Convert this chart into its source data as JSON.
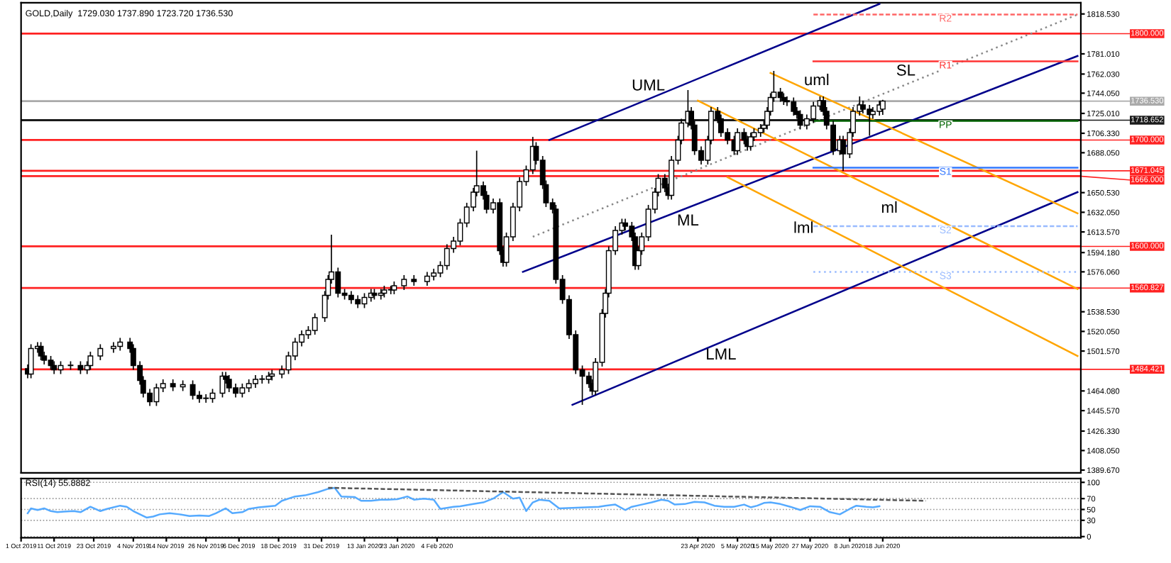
{
  "chart_data": [
    {
      "type": "candlestick",
      "title": "GOLD,Daily  1729.030 1737.890 1723.720 1736.530",
      "color": "#000000",
      "tick_labels": "y",
      "xlim": [
        "2019-10-01",
        "2020-08-17"
      ],
      "ylim": [
        1387,
        1829
      ],
      "yticks": [
        {
          "value": 1818.53,
          "label": "1818.530"
        },
        {
          "value": 1781.01,
          "label": "1781.010"
        },
        {
          "value": 1762.03,
          "label": "1762.030"
        },
        {
          "value": 1744.05,
          "label": "1744.050"
        },
        {
          "value": 1725.01,
          "label": "1725.010"
        },
        {
          "value": 1706.33,
          "label": "1706.330"
        },
        {
          "value": 1688.05,
          "label": "1688.050"
        },
        {
          "value": 1650.53,
          "label": "1650.530"
        },
        {
          "value": 1632.05,
          "label": "1632.050"
        },
        {
          "value": 1613.57,
          "label": "1613.570"
        },
        {
          "value": 1594.18,
          "label": "1594.180"
        },
        {
          "value": 1576.06,
          "label": "1576.060"
        },
        {
          "value": 1538.53,
          "label": "1538.530"
        },
        {
          "value": 1520.05,
          "label": "1520.050"
        },
        {
          "value": 1501.57,
          "label": "1501.570"
        },
        {
          "value": 1464.08,
          "label": "1464.080"
        },
        {
          "value": 1445.57,
          "label": "1445.570"
        },
        {
          "value": 1426.33,
          "label": "1426.330"
        },
        {
          "value": 1408.05,
          "label": "1408.050"
        },
        {
          "value": 1389.67,
          "label": "1389.670"
        }
      ],
      "x": [
        "2019-10-03",
        "2019-10-04",
        "2019-10-06",
        "2019-10-07",
        "2019-10-08",
        "2019-10-10",
        "2019-10-11",
        "2019-10-13",
        "2019-10-16",
        "2019-10-19",
        "2019-10-21",
        "2019-10-22",
        "2019-10-25",
        "2019-10-29",
        "2019-10-31",
        "2019-11-03",
        "2019-11-04",
        "2019-11-06",
        "2019-11-07",
        "2019-11-09",
        "2019-11-11",
        "2019-11-13",
        "2019-11-16",
        "2019-11-19",
        "2019-11-22",
        "2019-11-24",
        "2019-11-26",
        "2019-11-28",
        "2019-12-01",
        "2019-12-02",
        "2019-12-03",
        "2019-12-05",
        "2019-12-07",
        "2019-12-09",
        "2019-12-11",
        "2019-12-13",
        "2019-12-15",
        "2019-12-16",
        "2019-12-19",
        "2019-12-21",
        "2019-12-23",
        "2019-12-25",
        "2019-12-27",
        "2019-12-29",
        "2020-01-01",
        "2020-01-02",
        "2020-01-03",
        "2020-01-05",
        "2020-01-07",
        "2020-01-09",
        "2020-01-11",
        "2020-01-13",
        "2020-01-15",
        "2020-01-16",
        "2020-01-18",
        "2020-01-19",
        "2020-01-21",
        "2020-01-22",
        "2020-01-25",
        "2020-01-28",
        "2020-02-01",
        "2020-02-03",
        "2020-02-05",
        "2020-02-07",
        "2020-02-09",
        "2020-02-11",
        "2020-02-13",
        "2020-02-15",
        "2020-02-16",
        "2020-02-18",
        "2020-02-19",
        "2020-02-21",
        "2020-02-23",
        "2020-02-24",
        "2020-02-25",
        "2020-02-27",
        "2020-02-29",
        "2020-03-02",
        "2020-03-04",
        "2020-03-05",
        "2020-03-07",
        "2020-03-08",
        "2020-03-10",
        "2020-03-11",
        "2020-03-13",
        "2020-03-15",
        "2020-03-17",
        "2020-03-19",
        "2020-03-21",
        "2020-03-22",
        "2020-03-23",
        "2020-03-25",
        "2020-03-26",
        "2020-03-27",
        "2020-03-29",
        "2020-03-31",
        "2020-04-01",
        "2020-04-03",
        "2020-04-04",
        "2020-04-05",
        "2020-04-06",
        "2020-04-08",
        "2020-04-10",
        "2020-04-11",
        "2020-04-13",
        "2020-04-14",
        "2020-04-15",
        "2020-04-17",
        "2020-04-18",
        "2020-04-20",
        "2020-04-21",
        "2020-04-22",
        "2020-04-24",
        "2020-04-26",
        "2020-04-27",
        "2020-04-29",
        "2020-04-30",
        "2020-05-02",
        "2020-05-04",
        "2020-05-05",
        "2020-05-07",
        "2020-05-08",
        "2020-05-09",
        "2020-05-10",
        "2020-05-12",
        "2020-05-13",
        "2020-05-14",
        "2020-05-15",
        "2020-05-16",
        "2020-05-18",
        "2020-05-19",
        "2020-05-20",
        "2020-05-22",
        "2020-05-23",
        "2020-05-24",
        "2020-05-26",
        "2020-05-28",
        "2020-05-30",
        "2020-05-31",
        "2020-06-01",
        "2020-06-03",
        "2020-06-05",
        "2020-06-06",
        "2020-06-08",
        "2020-06-09",
        "2020-06-11",
        "2020-06-12",
        "2020-06-14",
        "2020-06-15",
        "2020-06-17",
        "2020-06-18"
      ],
      "ohlc": [
        [
          1485,
          1489,
          1476,
          1480
        ],
        [
          1480,
          1508,
          1476,
          1504
        ],
        [
          1504,
          1510,
          1500,
          1506
        ],
        [
          1506,
          1510,
          1493,
          1497
        ],
        [
          1497,
          1501,
          1489,
          1493
        ],
        [
          1493,
          1497,
          1484,
          1488
        ],
        [
          1488,
          1492,
          1480,
          1484
        ],
        [
          1484,
          1492,
          1480,
          1488
        ],
        [
          1488,
          1492,
          1484,
          1488
        ],
        [
          1488,
          1492,
          1480,
          1484
        ],
        [
          1484,
          1492,
          1480,
          1488
        ],
        [
          1488,
          1501,
          1484,
          1497
        ],
        [
          1497,
          1508,
          1493,
          1504
        ],
        [
          1504,
          1510,
          1500,
          1506
        ],
        [
          1506,
          1514,
          1502,
          1510
        ],
        [
          1510,
          1514,
          1500,
          1504
        ],
        [
          1504,
          1508,
          1484,
          1488
        ],
        [
          1488,
          1492,
          1470,
          1474
        ],
        [
          1474,
          1478,
          1458,
          1462
        ],
        [
          1462,
          1466,
          1450,
          1454
        ],
        [
          1454,
          1471,
          1450,
          1467
        ],
        [
          1467,
          1475,
          1463,
          1471
        ],
        [
          1471,
          1475,
          1464,
          1468
        ],
        [
          1468,
          1474,
          1464,
          1470
        ],
        [
          1470,
          1474,
          1456,
          1460
        ],
        [
          1460,
          1464,
          1453,
          1457
        ],
        [
          1457,
          1461,
          1453,
          1457
        ],
        [
          1457,
          1466,
          1453,
          1462
        ],
        [
          1462,
          1482,
          1458,
          1478
        ],
        [
          1478,
          1482,
          1471,
          1475
        ],
        [
          1475,
          1479,
          1463,
          1467
        ],
        [
          1467,
          1471,
          1458,
          1462
        ],
        [
          1462,
          1471,
          1458,
          1467
        ],
        [
          1467,
          1475,
          1463,
          1471
        ],
        [
          1471,
          1479,
          1467,
          1475
        ],
        [
          1475,
          1479,
          1471,
          1475
        ],
        [
          1475,
          1482,
          1471,
          1478
        ],
        [
          1478,
          1484,
          1474,
          1480
        ],
        [
          1480,
          1488,
          1476,
          1484
        ],
        [
          1484,
          1501,
          1480,
          1497
        ],
        [
          1497,
          1514,
          1493,
          1510
        ],
        [
          1510,
          1521,
          1506,
          1517
        ],
        [
          1517,
          1525,
          1513,
          1521
        ],
        [
          1521,
          1537,
          1517,
          1533
        ],
        [
          1533,
          1558,
          1529,
          1554
        ],
        [
          1554,
          1573,
          1550,
          1569
        ],
        [
          1569,
          1611,
          1565,
          1576
        ],
        [
          1576,
          1580,
          1552,
          1556
        ],
        [
          1556,
          1560,
          1550,
          1554
        ],
        [
          1554,
          1558,
          1546,
          1550
        ],
        [
          1550,
          1554,
          1542,
          1546
        ],
        [
          1546,
          1556,
          1542,
          1552
        ],
        [
          1552,
          1560,
          1548,
          1556
        ],
        [
          1556,
          1560,
          1550,
          1554
        ],
        [
          1554,
          1560,
          1550,
          1556
        ],
        [
          1556,
          1563,
          1552,
          1559
        ],
        [
          1559,
          1563,
          1555,
          1559
        ],
        [
          1559,
          1567,
          1555,
          1563
        ],
        [
          1563,
          1573,
          1559,
          1569
        ],
        [
          1569,
          1573,
          1563,
          1567
        ],
        [
          1567,
          1576,
          1563,
          1572
        ],
        [
          1572,
          1579,
          1568,
          1575
        ],
        [
          1575,
          1586,
          1571,
          1582
        ],
        [
          1582,
          1602,
          1578,
          1598
        ],
        [
          1598,
          1609,
          1594,
          1605
        ],
        [
          1605,
          1626,
          1601,
          1622
        ],
        [
          1622,
          1641,
          1618,
          1637
        ],
        [
          1637,
          1655,
          1633,
          1651
        ],
        [
          1651,
          1690,
          1647,
          1657
        ],
        [
          1657,
          1661,
          1644,
          1648
        ],
        [
          1648,
          1652,
          1631,
          1635
        ],
        [
          1635,
          1645,
          1631,
          1641
        ],
        [
          1641,
          1645,
          1592,
          1596
        ],
        [
          1596,
          1600,
          1581,
          1585
        ],
        [
          1585,
          1613,
          1581,
          1609
        ],
        [
          1609,
          1641,
          1605,
          1637
        ],
        [
          1637,
          1665,
          1633,
          1661
        ],
        [
          1661,
          1676,
          1657,
          1672
        ],
        [
          1672,
          1703,
          1668,
          1694
        ],
        [
          1694,
          1698,
          1677,
          1681
        ],
        [
          1681,
          1685,
          1654,
          1658
        ],
        [
          1658,
          1662,
          1637,
          1641
        ],
        [
          1641,
          1645,
          1631,
          1635
        ],
        [
          1635,
          1639,
          1565,
          1569
        ],
        [
          1569,
          1573,
          1546,
          1550
        ],
        [
          1550,
          1554,
          1513,
          1517
        ],
        [
          1517,
          1521,
          1480,
          1484
        ],
        [
          1484,
          1488,
          1451,
          1478
        ],
        [
          1478,
          1482,
          1467,
          1471
        ],
        [
          1471,
          1475,
          1460,
          1464
        ],
        [
          1464,
          1495,
          1460,
          1491
        ],
        [
          1491,
          1541,
          1487,
          1537
        ],
        [
          1537,
          1560,
          1533,
          1556
        ],
        [
          1556,
          1600,
          1552,
          1596
        ],
        [
          1596,
          1619,
          1592,
          1615
        ],
        [
          1615,
          1626,
          1611,
          1622
        ],
        [
          1622,
          1626,
          1615,
          1619
        ],
        [
          1619,
          1623,
          1605,
          1609
        ],
        [
          1609,
          1613,
          1578,
          1582
        ],
        [
          1582,
          1600,
          1578,
          1596
        ],
        [
          1596,
          1613,
          1592,
          1609
        ],
        [
          1609,
          1639,
          1605,
          1635
        ],
        [
          1635,
          1655,
          1631,
          1651
        ],
        [
          1651,
          1668,
          1647,
          1664
        ],
        [
          1664,
          1668,
          1651,
          1655
        ],
        [
          1655,
          1659,
          1644,
          1648
        ],
        [
          1648,
          1685,
          1644,
          1681
        ],
        [
          1681,
          1704,
          1677,
          1700
        ],
        [
          1700,
          1720,
          1696,
          1716
        ],
        [
          1716,
          1747,
          1712,
          1727
        ],
        [
          1727,
          1731,
          1710,
          1714
        ],
        [
          1714,
          1718,
          1686,
          1690
        ],
        [
          1690,
          1694,
          1677,
          1681
        ],
        [
          1681,
          1704,
          1677,
          1700
        ],
        [
          1700,
          1731,
          1696,
          1727
        ],
        [
          1727,
          1731,
          1716,
          1720
        ],
        [
          1720,
          1724,
          1703,
          1707
        ],
        [
          1707,
          1711,
          1696,
          1700
        ],
        [
          1700,
          1704,
          1686,
          1690
        ],
        [
          1690,
          1711,
          1686,
          1707
        ],
        [
          1707,
          1711,
          1696,
          1700
        ],
        [
          1700,
          1704,
          1690,
          1694
        ],
        [
          1694,
          1707,
          1690,
          1703
        ],
        [
          1703,
          1711,
          1699,
          1707
        ],
        [
          1707,
          1715,
          1703,
          1711
        ],
        [
          1711,
          1718,
          1707,
          1714
        ],
        [
          1714,
          1731,
          1710,
          1727
        ],
        [
          1727,
          1744,
          1723,
          1740
        ],
        [
          1740,
          1765,
          1736,
          1745
        ],
        [
          1745,
          1749,
          1736,
          1740
        ],
        [
          1740,
          1744,
          1733,
          1737
        ],
        [
          1737,
          1741,
          1732,
          1736
        ],
        [
          1736,
          1740,
          1723,
          1727
        ],
        [
          1727,
          1731,
          1720,
          1724
        ],
        [
          1724,
          1728,
          1710,
          1714
        ],
        [
          1714,
          1724,
          1710,
          1720
        ],
        [
          1720,
          1736,
          1716,
          1732
        ],
        [
          1732,
          1741,
          1728,
          1737
        ],
        [
          1737,
          1741,
          1723,
          1727
        ],
        [
          1727,
          1731,
          1710,
          1714
        ],
        [
          1714,
          1718,
          1686,
          1690
        ],
        [
          1690,
          1704,
          1686,
          1700
        ],
        [
          1700,
          1704,
          1671,
          1687
        ],
        [
          1687,
          1711,
          1683,
          1707
        ],
        [
          1707,
          1731,
          1703,
          1727
        ],
        [
          1727,
          1741,
          1723,
          1733
        ],
        [
          1733,
          1737,
          1725,
          1729
        ],
        [
          1729,
          1733,
          1704,
          1724
        ],
        [
          1724,
          1731,
          1720,
          1727
        ],
        [
          1727,
          1737,
          1723,
          1733
        ],
        [
          1729.03,
          1737.89,
          1723.72,
          1736.53
        ]
      ],
      "series": [
        {
          "type": "line",
          "x": [
            "2020-03-09",
            "2020-06-17"
          ],
          "values": [
            1700,
            1828
          ],
          "color": "#00008b"
        },
        {
          "type": "line",
          "x": [
            "2020-03-01",
            "2020-08-16"
          ],
          "values": [
            1576,
            1779
          ],
          "color": "#00008b"
        },
        {
          "type": "line",
          "x": [
            "2020-03-16",
            "2020-08-16"
          ],
          "values": [
            1451,
            1651
          ],
          "color": "#00008b"
        },
        {
          "type": "line",
          "x": [
            "2020-03-04",
            "2020-08-16"
          ],
          "values": [
            1609,
            1818
          ],
          "color": "#888888",
          "line_style": "dotted"
        },
        {
          "type": "line",
          "x": [
            "2020-05-15",
            "2020-08-16"
          ],
          "values": [
            1763,
            1631
          ],
          "color": "#ffa500"
        },
        {
          "type": "line",
          "x": [
            "2020-04-23",
            "2020-08-16"
          ],
          "values": [
            1737,
            1560
          ],
          "color": "#ffa500"
        },
        {
          "type": "line",
          "x": [
            "2020-05-02",
            "2020-08-16"
          ],
          "values": [
            1665,
            1497
          ],
          "color": "#ffa500"
        },
        {
          "name": "R2",
          "type": "line",
          "x": [
            "2020-05-28",
            "2020-08-16"
          ],
          "values": [
            1818,
            1818
          ],
          "color": "#ff6666",
          "line_style": "dashed"
        },
        {
          "name": "R1",
          "type": "line",
          "x": [
            "2020-05-28",
            "2020-08-16"
          ],
          "values": [
            1774,
            1774
          ],
          "color": "#ff3333"
        },
        {
          "name": "PP",
          "type": "line",
          "x": [
            "2020-05-28",
            "2020-08-16"
          ],
          "values": [
            1718,
            1718
          ],
          "color": "#006400"
        },
        {
          "name": "S1",
          "type": "line",
          "x": [
            "2020-05-28",
            "2020-08-16"
          ],
          "values": [
            1674,
            1674
          ],
          "color": "#3377ff"
        },
        {
          "name": "S2",
          "type": "line",
          "x": [
            "2020-05-28",
            "2020-08-16"
          ],
          "values": [
            1619,
            1619
          ],
          "color": "#99bbff",
          "line_style": "dashed"
        },
        {
          "name": "S3",
          "type": "line",
          "x": [
            "2020-05-28",
            "2020-08-16"
          ],
          "values": [
            1576,
            1576
          ],
          "color": "#99bbff",
          "line_style": "dotted"
        }
      ],
      "ref_lines": [
        {
          "axis": "y",
          "value": 1800,
          "label": "1800.000",
          "color": "#ff2222"
        },
        {
          "axis": "y",
          "value": 1736.53,
          "label": "1736.530",
          "color": "#aaaaaa"
        },
        {
          "axis": "y",
          "value": 1718.652,
          "label": "1718.652",
          "color": "#1a1a1a"
        },
        {
          "axis": "y",
          "value": 1700,
          "label": "1700.000",
          "color": "#ff2222"
        },
        {
          "axis": "y",
          "value": 1671.045,
          "label": "1671.045",
          "color": "#ff2222"
        },
        {
          "axis": "y",
          "value": 1666,
          "label": "1666.000",
          "color": "#ff2222"
        },
        {
          "axis": "y",
          "value": 1600,
          "label": "1600.000",
          "color": "#ff2222"
        },
        {
          "axis": "y",
          "value": 1560.827,
          "label": "1560.827",
          "color": "#ff2222"
        },
        {
          "axis": "y",
          "value": 1484.421,
          "label": "1484.421",
          "color": "#ff2222"
        }
      ],
      "annotations": [
        {
          "text": "UML",
          "x": "2020-04-08",
          "y": 1738
        },
        {
          "text": "ML",
          "x": "2020-04-20",
          "y": 1636
        },
        {
          "text": "LML",
          "x": "2020-04-30",
          "y": 1510
        },
        {
          "text": "uml",
          "x": "2020-05-29",
          "y": 1743
        },
        {
          "text": "SL",
          "x": "2020-06-25",
          "y": 1752
        },
        {
          "text": "ml",
          "x": "2020-06-20",
          "y": 1648
        },
        {
          "text": "lml",
          "x": "2020-05-25",
          "y": 1629
        }
      ]
    },
    {
      "type": "line",
      "title": "RSI(14) 55.8882",
      "grid": "y",
      "xlim": [
        "2019-10-01",
        "2020-08-17"
      ],
      "ylim": [
        -2,
        107
      ],
      "yticks": [
        0,
        30,
        50,
        70,
        100
      ],
      "xticks": [
        {
          "value": "2019-10-01",
          "label": "1 Oct 2019"
        },
        {
          "value": "2019-10-11",
          "label": "11 Oct 2019"
        },
        {
          "value": "2019-10-23",
          "label": "23 Oct 2019"
        },
        {
          "value": "2019-11-04",
          "label": "4 Nov 2019"
        },
        {
          "value": "2019-11-14",
          "label": "14 Nov 2019"
        },
        {
          "value": "2019-11-26",
          "label": "26 Nov 2019"
        },
        {
          "value": "2019-12-06",
          "label": "6 Dec 2019"
        },
        {
          "value": "2019-12-18",
          "label": "18 Dec 2019"
        },
        {
          "value": "2019-12-31",
          "label": "31 Dec 2019"
        },
        {
          "value": "2020-01-13",
          "label": "13 Jan 2020"
        },
        {
          "value": "2020-01-23",
          "label": "23 Jan 2020"
        },
        {
          "value": "2020-02-04",
          "label": "4 Feb 2020"
        },
        {
          "value": "2020-04-23",
          "label": "23 Apr 2020"
        },
        {
          "value": "2020-05-05",
          "label": "5 May 2020"
        },
        {
          "value": "2020-05-15",
          "label": "15 May 2020"
        },
        {
          "value": "2020-05-27",
          "label": "27 May 2020"
        },
        {
          "value": "2020-06-08",
          "label": "8 Jun 2020"
        },
        {
          "value": "2020-06-18",
          "label": "18 Jun 2020"
        }
      ],
      "series": [
        {
          "color": "#55aaff",
          "x": [
            "2019-10-03",
            "2019-10-04",
            "2019-10-06",
            "2019-10-08",
            "2019-10-10",
            "2019-10-12",
            "2019-10-14",
            "2019-10-17",
            "2019-10-19",
            "2019-10-22",
            "2019-10-25",
            "2019-10-27",
            "2019-10-31",
            "2019-11-02",
            "2019-11-04",
            "2019-11-06",
            "2019-11-08",
            "2019-11-10",
            "2019-11-12",
            "2019-11-15",
            "2019-11-18",
            "2019-11-21",
            "2019-11-24",
            "2019-11-27",
            "2019-11-29",
            "2019-12-02",
            "2019-12-04",
            "2019-12-07",
            "2019-12-09",
            "2019-12-12",
            "2019-12-17",
            "2019-12-19",
            "2019-12-23",
            "2019-12-26",
            "2019-12-30",
            "2020-01-02",
            "2020-01-04",
            "2020-01-06",
            "2020-01-10",
            "2020-01-12",
            "2020-01-15",
            "2020-01-18",
            "2020-01-20",
            "2020-01-23",
            "2020-01-26",
            "2020-01-28",
            "2020-01-31",
            "2020-02-03",
            "2020-02-05",
            "2020-02-09",
            "2020-02-11",
            "2020-02-15",
            "2020-02-18",
            "2020-02-21",
            "2020-02-24",
            "2020-02-27",
            "2020-02-29",
            "2020-03-02",
            "2020-03-04",
            "2020-03-06",
            "2020-03-09",
            "2020-03-12",
            "2020-03-24",
            "2020-03-26",
            "2020-03-29",
            "2020-04-01",
            "2020-04-03",
            "2020-04-06",
            "2020-04-09",
            "2020-04-12",
            "2020-04-14",
            "2020-04-16",
            "2020-04-19",
            "2020-04-22",
            "2020-04-25",
            "2020-04-28",
            "2020-05-01",
            "2020-05-04",
            "2020-05-07",
            "2020-05-09",
            "2020-05-11",
            "2020-05-13",
            "2020-05-15",
            "2020-05-18",
            "2020-05-21",
            "2020-05-24",
            "2020-05-27",
            "2020-05-30",
            "2020-06-02",
            "2020-06-05",
            "2020-06-08",
            "2020-06-10",
            "2020-06-13",
            "2020-06-15",
            "2020-06-17"
          ],
          "values": [
            43,
            52,
            49,
            52,
            47,
            45,
            46,
            47,
            45,
            55,
            47,
            51,
            57,
            55,
            47,
            41,
            35,
            37,
            41,
            43,
            41,
            38,
            39,
            38,
            43,
            52,
            43,
            45,
            51,
            54,
            57,
            66,
            74,
            76,
            82,
            88,
            90,
            74,
            73,
            66,
            66,
            68,
            68,
            69,
            74,
            68,
            70,
            68,
            51,
            55,
            56,
            60,
            63,
            70,
            82,
            70,
            72,
            47,
            63,
            68,
            66,
            52,
            55,
            57,
            59,
            49,
            55,
            59,
            63,
            68,
            66,
            59,
            60,
            64,
            63,
            57,
            55,
            55,
            59,
            54,
            57,
            62,
            63,
            60,
            55,
            49,
            56,
            55,
            45,
            41,
            51,
            57,
            55,
            54,
            56
          ]
        },
        {
          "type": "line",
          "x": [
            "2020-01-02",
            "2020-07-01"
          ],
          "values": [
            90,
            66
          ],
          "color": "#555555",
          "line_style": "dashed"
        }
      ]
    }
  ]
}
